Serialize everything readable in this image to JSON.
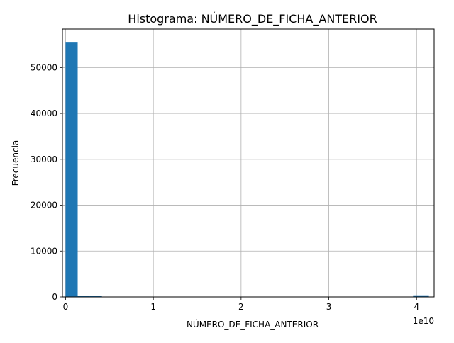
{
  "chart_data": {
    "type": "bar",
    "title": "Histograma: NÚMERO_DE_FICHA_ANTERIOR",
    "xlabel": "NÚMERO_DE_FICHA_ANTERIOR",
    "ylabel": "Frecuencia",
    "x_offset_label": "1e10",
    "x_scale": 10000000000,
    "xlim": [
      -360000000,
      42000000000
    ],
    "ylim": [
      0,
      58400
    ],
    "xticks": [
      0,
      1,
      2,
      3,
      4
    ],
    "yticks": [
      0,
      10000,
      20000,
      30000,
      40000,
      50000
    ],
    "grid": true,
    "bar_color": "#1f77b4",
    "bins": [
      {
        "x0": 0,
        "x1": 1380000000,
        "count": 55600
      },
      {
        "x0": 1380000000,
        "x1": 2760000000,
        "count": 280
      },
      {
        "x0": 2760000000,
        "x1": 4140000000,
        "count": 250
      },
      {
        "x0": 39600000000,
        "x1": 41400000000,
        "count": 350
      }
    ]
  }
}
